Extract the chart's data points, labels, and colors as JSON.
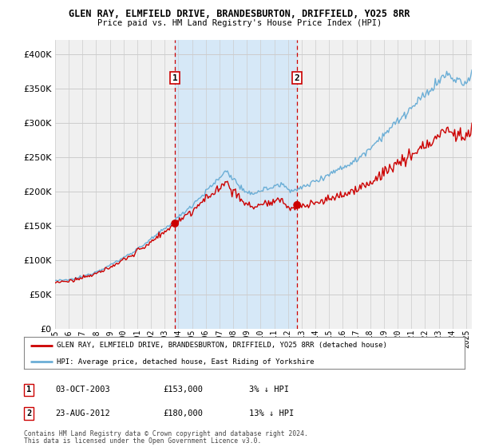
{
  "title1": "GLEN RAY, ELMFIELD DRIVE, BRANDESBURTON, DRIFFIELD, YO25 8RR",
  "title2": "Price paid vs. HM Land Registry's House Price Index (HPI)",
  "legend_line1": "GLEN RAY, ELMFIELD DRIVE, BRANDESBURTON, DRIFFIELD, YO25 8RR (detached house)",
  "legend_line2": "HPI: Average price, detached house, East Riding of Yorkshire",
  "ann1_label": "1",
  "ann1_date_str": "03-OCT-2003",
  "ann1_price": 153000,
  "ann1_hpi_pct": "3% ↓ HPI",
  "ann1_date_index": 105,
  "ann1_value": 153000,
  "ann2_label": "2",
  "ann2_date_str": "23-AUG-2012",
  "ann2_price": 180000,
  "ann2_hpi_pct": "13% ↓ HPI",
  "ann2_date_index": 212,
  "ann2_value": 180000,
  "footer1": "Contains HM Land Registry data © Crown copyright and database right 2024.",
  "footer2": "This data is licensed under the Open Government Licence v3.0.",
  "hpi_color": "#6baed6",
  "price_color": "#cc0000",
  "dot_color": "#cc0000",
  "shade_color": "#d6e8f7",
  "vline_color": "#cc0000",
  "bg_color": "#ffffff",
  "plot_bg_color": "#f0f0f0",
  "grid_color": "#cccccc",
  "ylim": [
    0,
    420000
  ],
  "yticks": [
    0,
    50000,
    100000,
    150000,
    200000,
    250000,
    300000,
    350000,
    400000
  ],
  "ytick_labels": [
    "£0",
    "£50K",
    "£100K",
    "£150K",
    "£200K",
    "£250K",
    "£300K",
    "£350K",
    "£400K"
  ]
}
